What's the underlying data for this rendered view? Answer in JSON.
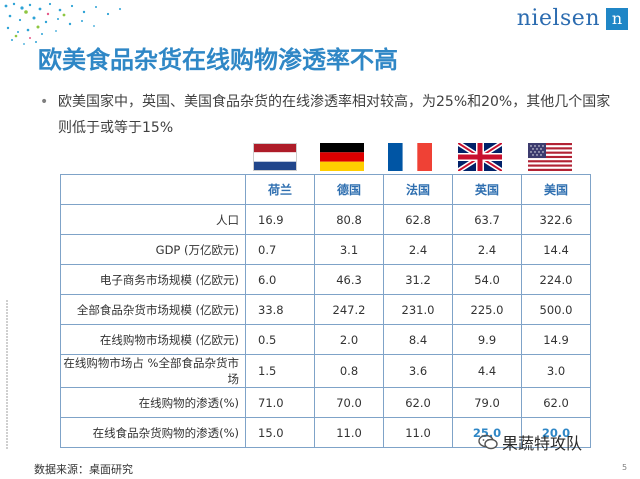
{
  "header": {
    "logo_text": "nielsen",
    "logo_mark": "n"
  },
  "title": "欧美食品杂货在线购物渗透率不高",
  "bullet": "欧美国家中，英国、美国食品杂货的在线渗透率相对较高，为25%和20%，其他几个国家则低于或等于15%",
  "flags": [
    {
      "country": "荷兰",
      "icon": "netherlands-flag-icon"
    },
    {
      "country": "德国",
      "icon": "germany-flag-icon"
    },
    {
      "country": "法国",
      "icon": "france-flag-icon"
    },
    {
      "country": "英国",
      "icon": "uk-flag-icon"
    },
    {
      "country": "美国",
      "icon": "usa-flag-icon"
    }
  ],
  "table": {
    "columns": [
      "荷兰",
      "德国",
      "法国",
      "英国",
      "美国"
    ],
    "rows": [
      {
        "label": "人口",
        "values": [
          "16.9",
          "80.8",
          "62.8",
          "63.7",
          "322.6"
        ]
      },
      {
        "label": "GDP (万亿欧元)",
        "values": [
          "0.7",
          "3.1",
          "2.4",
          "2.4",
          "14.4"
        ]
      },
      {
        "label": "电子商务市场规模 (亿欧元)",
        "values": [
          "6.0",
          "46.3",
          "31.2",
          "54.0",
          "224.0"
        ]
      },
      {
        "label": "全部食品杂货市场规模 (亿欧元)",
        "values": [
          "33.8",
          "247.2",
          "231.0",
          "225.0",
          "500.0"
        ]
      },
      {
        "label": "在线购物市场规模 (亿欧元)",
        "values": [
          "0.5",
          "2.0",
          "8.4",
          "9.9",
          "14.9"
        ]
      },
      {
        "label": "在线购物市场占 %全部食品杂货市场",
        "values": [
          "1.5",
          "0.8",
          "3.6",
          "4.4",
          "3.0"
        ]
      },
      {
        "label": "在线购物的渗透(%)",
        "values": [
          "71.0",
          "70.0",
          "62.0",
          "79.0",
          "62.0"
        ]
      },
      {
        "label": "在线食品杂货购物的渗透(%)",
        "values": [
          "15.0",
          "11.0",
          "11.0",
          "25.0",
          "20.0"
        ]
      }
    ]
  },
  "source": "数据来源：桌面研究",
  "watermark": "果蔬特攻队",
  "page_number": "5",
  "colors": {
    "accent": "#2f87c6",
    "border": "#7fa3c8"
  }
}
